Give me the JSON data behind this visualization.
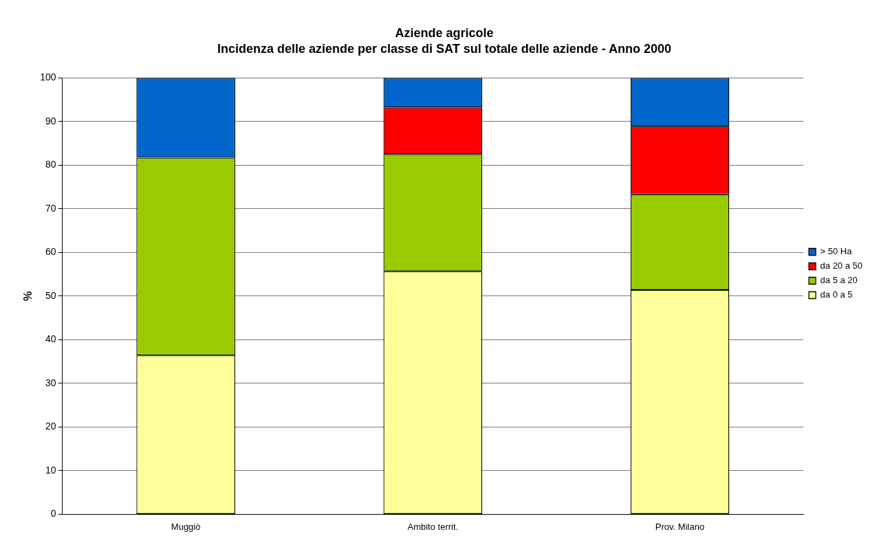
{
  "chart_data": {
    "type": "bar",
    "title": "Aziende agricole",
    "subtitle": "Incidenza delle aziende per classe di SAT sul totale delle aziende - Anno 2000",
    "ylabel": "%",
    "categories": [
      "Muggiò",
      "Ambito territ.",
      "Prov. Milano"
    ],
    "stacked": true,
    "series": [
      {
        "name": "da 0 a 5",
        "color": "#ffff99",
        "values": [
          36.4,
          55.7,
          51.4
        ]
      },
      {
        "name": "da 5 a 20",
        "color": "#99cc00",
        "values": [
          45.3,
          26.8,
          21.9
        ]
      },
      {
        "name": "da 20 a 50",
        "color": "#ff0000",
        "values": [
          0,
          10.7,
          15.5
        ]
      },
      {
        "name": "> 50 Ha",
        "color": "#0066cc",
        "values": [
          18.3,
          6.8,
          11.2
        ]
      }
    ],
    "ylim": [
      0,
      100
    ],
    "yticks": [
      0,
      10,
      20,
      30,
      40,
      50,
      60,
      70,
      80,
      90,
      100
    ],
    "grid": "y",
    "legend": "right"
  }
}
